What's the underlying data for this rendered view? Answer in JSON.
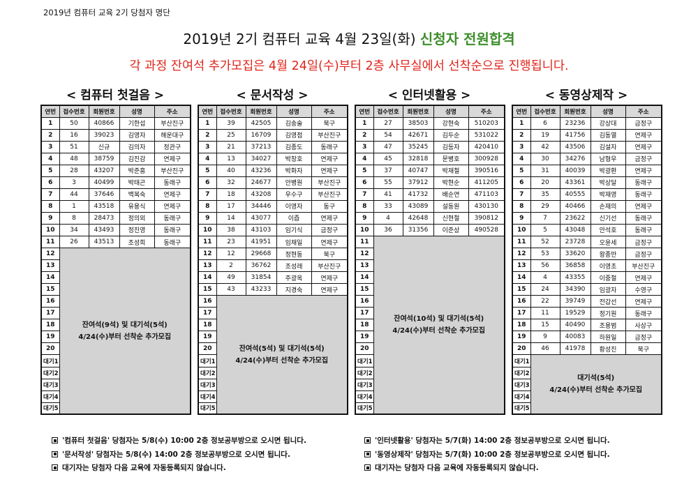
{
  "top_caption": "2019년 컴퓨터 교육 2기 당첨자 명단",
  "headline": {
    "main": "2019년 2기 컴퓨터 교육 4월 23일(화) ",
    "accent": "신청자 전원합격"
  },
  "subline": "각 과정 잔여석 추가모집은 4월 24일(수)부터 2층 사무실에서 선착순으로 진행됩니다.",
  "headers": [
    "연번",
    "접수번호",
    "회원번호",
    "성명",
    "주소"
  ],
  "waitlist_tags": [
    "대기1",
    "대기2",
    "대기3",
    "대기4",
    "대기5"
  ],
  "courses": [
    {
      "title": "< 컴퓨터 첫걸음 >",
      "rows": [
        [
          "1",
          "50",
          "40866",
          "기한섭",
          "부산진구"
        ],
        [
          "2",
          "16",
          "39023",
          "김영자",
          "해운대구"
        ],
        [
          "3",
          "51",
          "신규",
          "김의자",
          "정관구"
        ],
        [
          "4",
          "48",
          "38759",
          "김진감",
          "연제구"
        ],
        [
          "5",
          "28",
          "43207",
          "박준흥",
          "부산진구"
        ],
        [
          "6",
          "3",
          "40499",
          "박태곤",
          "동래구"
        ],
        [
          "7",
          "44",
          "37646",
          "백복숙",
          "연제구"
        ],
        [
          "8",
          "1",
          "43518",
          "유용식",
          "연제구"
        ],
        [
          "9",
          "8",
          "28473",
          "정의외",
          "동래구"
        ],
        [
          "10",
          "34",
          "43493",
          "정진영",
          "동래구"
        ],
        [
          "11",
          "26",
          "43513",
          "조성희",
          "동래구"
        ]
      ],
      "empty_numbers": [
        "12",
        "13",
        "14",
        "15",
        "16",
        "17",
        "18",
        "19",
        "20"
      ],
      "vacancy_text": "잔여석(9석) 및 대기석(5석)\n4/24(수)부터 선착순 추가모집"
    },
    {
      "title": "< 문서작성 >",
      "rows": [
        [
          "1",
          "39",
          "42505",
          "김송술",
          "북구"
        ],
        [
          "2",
          "25",
          "16709",
          "김영점",
          "부산진구"
        ],
        [
          "3",
          "21",
          "37213",
          "김종도",
          "동래구"
        ],
        [
          "4",
          "13",
          "34027",
          "박창호",
          "연제구"
        ],
        [
          "5",
          "40",
          "43236",
          "박화자",
          "연제구"
        ],
        [
          "6",
          "32",
          "24677",
          "안병원",
          "부산진구"
        ],
        [
          "7",
          "18",
          "43208",
          "우수구",
          "부산진구"
        ],
        [
          "8",
          "17",
          "34446",
          "이영자",
          "동구"
        ],
        [
          "9",
          "14",
          "43077",
          "이즙",
          "연제구"
        ],
        [
          "10",
          "38",
          "43103",
          "임기식",
          "금정구"
        ],
        [
          "11",
          "23",
          "41951",
          "임채일",
          "연제구"
        ],
        [
          "12",
          "12",
          "29668",
          "정현동",
          "북구"
        ],
        [
          "13",
          "2",
          "36762",
          "조성래",
          "부산진구"
        ],
        [
          "14",
          "49",
          "31854",
          "주광옥",
          "연제구"
        ],
        [
          "15",
          "43",
          "43233",
          "지경숙",
          "연제구"
        ]
      ],
      "empty_numbers": [
        "16",
        "17",
        "18",
        "19",
        "20"
      ],
      "vacancy_text": "잔여석(5석) 및 대기석(5석)\n4/24(수)부터 선착순 추가모집"
    },
    {
      "title": "< 인터넷활용 >",
      "rows": [
        [
          "1",
          "27",
          "38503",
          "강현숙",
          "510203"
        ],
        [
          "2",
          "54",
          "42671",
          "김두순",
          "531022"
        ],
        [
          "3",
          "47",
          "35245",
          "김등자",
          "420410"
        ],
        [
          "4",
          "45",
          "32818",
          "문병호",
          "300928"
        ],
        [
          "5",
          "37",
          "40747",
          "박재철",
          "390516"
        ],
        [
          "6",
          "55",
          "37912",
          "박현순",
          "411205"
        ],
        [
          "7",
          "41",
          "41732",
          "배순연",
          "471103"
        ],
        [
          "8",
          "33",
          "43089",
          "설동원",
          "430130"
        ],
        [
          "9",
          "4",
          "42648",
          "신현철",
          "390812"
        ],
        [
          "10",
          "36",
          "31356",
          "이준상",
          "490528"
        ]
      ],
      "empty_numbers": [
        "11",
        "12",
        "13",
        "14",
        "15",
        "16",
        "17",
        "18",
        "19",
        "20"
      ],
      "vacancy_text": "잔여석(10석) 및 대기석(5석)\n4/24(수)부터 선착순 추가모집"
    },
    {
      "title": "< 동영상제작 >",
      "rows": [
        [
          "1",
          "6",
          "23236",
          "강상대",
          "금정구"
        ],
        [
          "2",
          "19",
          "41756",
          "김동열",
          "연제구"
        ],
        [
          "3",
          "42",
          "43506",
          "김설자",
          "연제구"
        ],
        [
          "4",
          "30",
          "34276",
          "남형우",
          "금정구"
        ],
        [
          "5",
          "31",
          "40039",
          "박광환",
          "연제구"
        ],
        [
          "6",
          "20",
          "43361",
          "박상달",
          "동래구"
        ],
        [
          "7",
          "35",
          "40555",
          "박재영",
          "동래구"
        ],
        [
          "8",
          "29",
          "40466",
          "손재의",
          "연제구"
        ],
        [
          "9",
          "7",
          "23622",
          "신기선",
          "동래구"
        ],
        [
          "10",
          "5",
          "43048",
          "안석호",
          "동래구"
        ],
        [
          "11",
          "52",
          "23728",
          "오윤세",
          "금정구"
        ],
        [
          "12",
          "53",
          "33620",
          "왕종만",
          "금정구"
        ],
        [
          "13",
          "56",
          "36858",
          "이영초",
          "부산진구"
        ],
        [
          "14",
          "4",
          "43355",
          "이중철",
          "연제구"
        ],
        [
          "15",
          "24",
          "34390",
          "임광자",
          "수영구"
        ],
        [
          "16",
          "22",
          "39749",
          "전갑선",
          "연제구"
        ],
        [
          "17",
          "11",
          "19529",
          "정기원",
          "동래구"
        ],
        [
          "18",
          "15",
          "40490",
          "조용범",
          "사상구"
        ],
        [
          "19",
          "9",
          "40083",
          "하원일",
          "금정구"
        ],
        [
          "20",
          "46",
          "41978",
          "황성진",
          "북구"
        ]
      ],
      "empty_numbers": [],
      "vacancy_text": "대기석(5석)\n4/24(수)부터 선착순 추가모집"
    }
  ],
  "notes_left": [
    "'컴퓨터 첫걸음' 당첨자는 5/8(수) 10:00 2층 정보공부방으로 오시면 됩니다.",
    "'문서작성' 당첨자는 5/8(수) 14:00 2층 정보공부방으로 오시면 됩니다.",
    "대기자는 당첨자 다음 교육에 자동등록되지 않습니다."
  ],
  "notes_right": [
    "'인터넷활용' 당첨자는 5/7(화) 14:00 2층 정보공부방으로 오시면 됩니다.",
    "'동영상제작' 당첨자는 5/7(화) 10:00 2층 정보공부방으로 오시면 됩니다.",
    "대기자는 당첨자 다음 교육에 자동등록되지 않습니다."
  ]
}
